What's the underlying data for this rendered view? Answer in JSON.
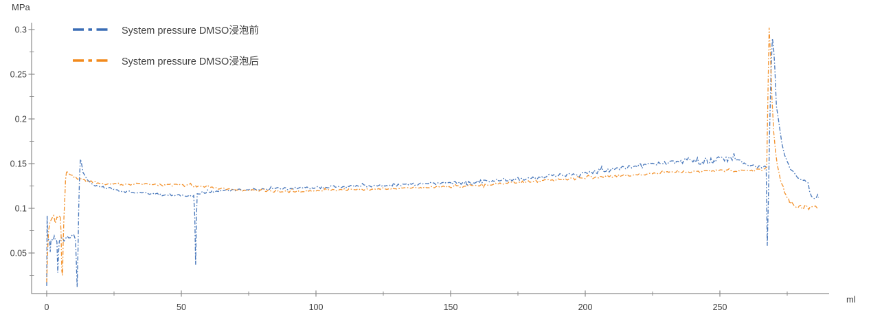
{
  "axis_labels": {
    "y_unit": "MPa",
    "x_unit": "ml"
  },
  "legend": {
    "items": [
      {
        "label": "System pressure DMSO浸泡前",
        "color": "#3a6db5"
      },
      {
        "label": "System pressure DMSO浸泡后",
        "color": "#f28a1d"
      }
    ]
  },
  "chart_data": {
    "type": "line",
    "title": "",
    "xlabel": "ml",
    "ylabel": "MPa",
    "xlim": [
      0,
      290
    ],
    "ylim": [
      0,
      0.31
    ],
    "grid": false,
    "legend_position": "top-left",
    "line_style": "dash-dot",
    "x_ticks": {
      "major": [
        0,
        50,
        100,
        150,
        200,
        250
      ],
      "labels": [
        "0",
        "50",
        "100",
        "150",
        "200",
        "250"
      ],
      "minor": [
        25,
        75,
        125,
        175,
        225,
        275
      ]
    },
    "y_ticks": {
      "major": [
        0.05,
        0.1,
        0.15,
        0.2,
        0.25,
        0.3
      ],
      "labels": [
        "0.05",
        "0.1",
        "0.15",
        "0.2",
        "0.25",
        "0.3"
      ],
      "minor": [
        0.025,
        0.075,
        0.125,
        0.175,
        0.225,
        0.275
      ]
    },
    "series": [
      {
        "name": "System pressure DMSO浸泡前",
        "color": "#3a6db5",
        "points": [
          [
            0,
            0.015
          ],
          [
            0.15,
            0.09
          ],
          [
            0.4,
            0.068
          ],
          [
            0.8,
            0.066
          ],
          [
            1.1,
            0.064
          ],
          [
            1.3,
            0.051
          ],
          [
            1.6,
            0.063
          ],
          [
            2.0,
            0.066
          ],
          [
            2.4,
            0.064
          ],
          [
            2.8,
            0.067
          ],
          [
            3.2,
            0.065
          ],
          [
            3.6,
            0.063
          ],
          [
            3.8,
            0.062
          ],
          [
            4.1,
            0.028
          ],
          [
            4.4,
            0.05
          ],
          [
            4.7,
            0.063
          ],
          [
            5.2,
            0.065
          ],
          [
            5.8,
            0.066
          ],
          [
            6.4,
            0.064
          ],
          [
            7.0,
            0.066
          ],
          [
            7.6,
            0.068
          ],
          [
            8.2,
            0.067
          ],
          [
            8.8,
            0.069
          ],
          [
            9.4,
            0.068
          ],
          [
            10.0,
            0.07
          ],
          [
            10.7,
            0.065
          ],
          [
            11.0,
            0.04
          ],
          [
            11.3,
            0.012
          ],
          [
            11.6,
            0.05
          ],
          [
            11.9,
            0.1
          ],
          [
            12.2,
            0.135
          ],
          [
            12.5,
            0.155
          ],
          [
            12.8,
            0.152
          ],
          [
            13.1,
            0.147
          ],
          [
            13.5,
            0.141
          ],
          [
            14,
            0.137
          ],
          [
            15,
            0.132
          ],
          [
            16,
            0.129
          ],
          [
            17,
            0.127
          ],
          [
            18.5,
            0.125
          ],
          [
            20,
            0.124
          ],
          [
            22,
            0.123
          ],
          [
            25,
            0.121
          ],
          [
            28,
            0.119
          ],
          [
            32,
            0.118
          ],
          [
            36,
            0.117
          ],
          [
            40,
            0.116
          ],
          [
            44,
            0.115
          ],
          [
            48,
            0.115
          ],
          [
            52,
            0.114
          ],
          [
            54.6,
            0.114
          ],
          [
            55.0,
            0.09
          ],
          [
            55.3,
            0.037
          ],
          [
            55.6,
            0.09
          ],
          [
            55.9,
            0.116
          ],
          [
            58,
            0.118
          ],
          [
            62,
            0.119
          ],
          [
            66,
            0.12
          ],
          [
            70,
            0.12
          ],
          [
            75,
            0.121
          ],
          [
            80,
            0.121
          ],
          [
            85,
            0.122
          ],
          [
            90,
            0.122
          ],
          [
            95,
            0.123
          ],
          [
            100,
            0.123
          ],
          [
            105,
            0.124
          ],
          [
            110,
            0.124
          ],
          [
            115,
            0.125
          ],
          [
            120,
            0.125
          ],
          [
            125,
            0.126
          ],
          [
            130,
            0.126
          ],
          [
            135,
            0.127
          ],
          [
            140,
            0.127
          ],
          [
            145,
            0.128
          ],
          [
            150,
            0.128
          ],
          [
            155,
            0.129
          ],
          [
            160,
            0.13
          ],
          [
            165,
            0.131
          ],
          [
            170,
            0.132
          ],
          [
            175,
            0.133
          ],
          [
            180,
            0.134
          ],
          [
            185,
            0.136
          ],
          [
            190,
            0.137
          ],
          [
            195,
            0.138
          ],
          [
            200,
            0.14
          ],
          [
            205,
            0.142
          ],
          [
            210,
            0.144
          ],
          [
            215,
            0.146
          ],
          [
            220,
            0.148
          ],
          [
            225,
            0.15
          ],
          [
            230,
            0.151
          ],
          [
            235,
            0.152
          ],
          [
            240,
            0.153
          ],
          [
            245,
            0.153
          ],
          [
            250,
            0.154
          ],
          [
            254,
            0.155
          ],
          [
            257,
            0.153
          ],
          [
            259,
            0.15
          ],
          [
            261,
            0.148
          ],
          [
            263,
            0.147
          ],
          [
            265,
            0.146
          ],
          [
            267.2,
            0.146
          ],
          [
            267.6,
            0.058
          ],
          [
            268.0,
            0.11
          ],
          [
            268.5,
            0.19
          ],
          [
            269.0,
            0.255
          ],
          [
            269.5,
            0.29
          ],
          [
            269.9,
            0.282
          ],
          [
            270.4,
            0.258
          ],
          [
            271,
            0.215
          ],
          [
            272,
            0.195
          ],
          [
            273,
            0.172
          ],
          [
            274,
            0.159
          ],
          [
            275,
            0.151
          ],
          [
            276,
            0.145
          ],
          [
            277,
            0.141
          ],
          [
            278,
            0.138
          ],
          [
            279,
            0.135
          ],
          [
            280,
            0.133
          ],
          [
            281,
            0.132
          ],
          [
            282,
            0.131
          ],
          [
            282.8,
            0.128
          ],
          [
            283.3,
            0.12
          ],
          [
            284,
            0.114
          ],
          [
            285,
            0.112
          ],
          [
            285.7,
            0.11
          ],
          [
            286.3,
            0.114
          ],
          [
            286.6,
            0.112
          ]
        ],
        "noise_segments": [
          [
            0,
            3.8,
            0.0022
          ],
          [
            4.7,
            10.7,
            0.002
          ],
          [
            13.5,
            55,
            0.0012
          ],
          [
            55.9,
            150,
            0.0013
          ],
          [
            150,
            237,
            0.002
          ],
          [
            237,
            257,
            0.0042
          ],
          [
            257,
            267.2,
            0.0018
          ],
          [
            270.4,
            287,
            0.0014
          ]
        ]
      },
      {
        "name": "System pressure DMSO浸泡后",
        "color": "#f28a1d",
        "points": [
          [
            0,
            0.018
          ],
          [
            0.3,
            0.05
          ],
          [
            0.7,
            0.075
          ],
          [
            1.2,
            0.083
          ],
          [
            2,
            0.087
          ],
          [
            2.6,
            0.09
          ],
          [
            3.2,
            0.088
          ],
          [
            3.8,
            0.092
          ],
          [
            4.4,
            0.09
          ],
          [
            5.0,
            0.092
          ],
          [
            5.3,
            0.075
          ],
          [
            5.6,
            0.03
          ],
          [
            5.9,
            0.025
          ],
          [
            6.1,
            0.06
          ],
          [
            6.4,
            0.09
          ],
          [
            6.7,
            0.11
          ],
          [
            7.0,
            0.132
          ],
          [
            7.4,
            0.142
          ],
          [
            7.8,
            0.14
          ],
          [
            8.5,
            0.138
          ],
          [
            9.5,
            0.136
          ],
          [
            11,
            0.134
          ],
          [
            12.5,
            0.133
          ],
          [
            14,
            0.131
          ],
          [
            16,
            0.13
          ],
          [
            18,
            0.129
          ],
          [
            20,
            0.128
          ],
          [
            23,
            0.127
          ],
          [
            26,
            0.127
          ],
          [
            30,
            0.127
          ],
          [
            34,
            0.127
          ],
          [
            38,
            0.127
          ],
          [
            42,
            0.126
          ],
          [
            46,
            0.126
          ],
          [
            50,
            0.126
          ],
          [
            54,
            0.125
          ],
          [
            58,
            0.124
          ],
          [
            62,
            0.123
          ],
          [
            66,
            0.122
          ],
          [
            70,
            0.121
          ],
          [
            75,
            0.12
          ],
          [
            80,
            0.12
          ],
          [
            85,
            0.119
          ],
          [
            90,
            0.119
          ],
          [
            95,
            0.119
          ],
          [
            100,
            0.12
          ],
          [
            105,
            0.12
          ],
          [
            110,
            0.121
          ],
          [
            115,
            0.121
          ],
          [
            120,
            0.121
          ],
          [
            125,
            0.122
          ],
          [
            130,
            0.122
          ],
          [
            135,
            0.123
          ],
          [
            140,
            0.123
          ],
          [
            145,
            0.124
          ],
          [
            150,
            0.124
          ],
          [
            155,
            0.125
          ],
          [
            160,
            0.126
          ],
          [
            165,
            0.127
          ],
          [
            170,
            0.128
          ],
          [
            175,
            0.129
          ],
          [
            180,
            0.13
          ],
          [
            185,
            0.131
          ],
          [
            190,
            0.132
          ],
          [
            195,
            0.133
          ],
          [
            200,
            0.134
          ],
          [
            205,
            0.135
          ],
          [
            210,
            0.136
          ],
          [
            215,
            0.137
          ],
          [
            220,
            0.138
          ],
          [
            225,
            0.139
          ],
          [
            230,
            0.14
          ],
          [
            236,
            0.141
          ],
          [
            242,
            0.141
          ],
          [
            248,
            0.142
          ],
          [
            254,
            0.142
          ],
          [
            259,
            0.142
          ],
          [
            263,
            0.143
          ],
          [
            266.5,
            0.143
          ],
          [
            267.4,
            0.146
          ],
          [
            267.8,
            0.22
          ],
          [
            268.3,
            0.302
          ],
          [
            268.8,
            0.27
          ],
          [
            269.3,
            0.225
          ],
          [
            270,
            0.185
          ],
          [
            270.7,
            0.163
          ],
          [
            271.3,
            0.15
          ],
          [
            272,
            0.138
          ],
          [
            273,
            0.127
          ],
          [
            274,
            0.119
          ],
          [
            275,
            0.113
          ],
          [
            276,
            0.109
          ],
          [
            277,
            0.106
          ],
          [
            278,
            0.103
          ],
          [
            279,
            0.101
          ],
          [
            280,
            0.102
          ],
          [
            281,
            0.1
          ],
          [
            282,
            0.103
          ],
          [
            283,
            0.1
          ],
          [
            284,
            0.102
          ],
          [
            284.8,
            0.099
          ],
          [
            285.5,
            0.102
          ],
          [
            286.2,
            0.1
          ]
        ],
        "noise_segments": [
          [
            0,
            5,
            0.0022
          ],
          [
            8,
            60,
            0.0013
          ],
          [
            60,
            150,
            0.0011
          ],
          [
            150,
            230,
            0.0014
          ],
          [
            230,
            267,
            0.0012
          ],
          [
            271,
            287,
            0.0017
          ]
        ]
      }
    ]
  }
}
